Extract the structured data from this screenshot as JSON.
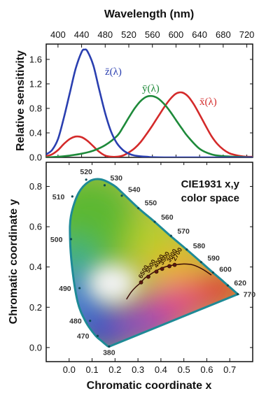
{
  "chart_data": [
    {
      "type": "line",
      "title": "Wavelength (nm)",
      "xlabel": "Wavelength (nm)",
      "ylabel": "Relative sensitivity",
      "xlim": [
        380,
        730
      ],
      "ylim": [
        0,
        1.85
      ],
      "xticks": [
        "400",
        "440",
        "480",
        "520",
        "560",
        "600",
        "640",
        "680",
        "720"
      ],
      "yticks": [
        "0.0",
        "0.4",
        "0.8",
        "1.2",
        "1.6"
      ],
      "series": [
        {
          "name": "x̄(λ)",
          "color": "#d42a2a",
          "x": [
            380,
            390,
            400,
            410,
            420,
            430,
            440,
            450,
            460,
            470,
            480,
            490,
            500,
            510,
            520,
            530,
            540,
            550,
            560,
            570,
            580,
            590,
            600,
            610,
            620,
            630,
            640,
            650,
            660,
            670,
            680,
            690,
            700,
            710,
            720,
            730
          ],
          "y": [
            0.02,
            0.05,
            0.12,
            0.22,
            0.3,
            0.34,
            0.33,
            0.27,
            0.18,
            0.09,
            0.03,
            0.01,
            0.01,
            0.03,
            0.08,
            0.15,
            0.25,
            0.38,
            0.52,
            0.67,
            0.82,
            0.95,
            1.04,
            1.06,
            1.0,
            0.87,
            0.7,
            0.52,
            0.35,
            0.22,
            0.13,
            0.07,
            0.04,
            0.02,
            0.01,
            0.01
          ]
        },
        {
          "name": "ȳ(λ)",
          "color": "#1e8a3a",
          "x": [
            380,
            400,
            420,
            440,
            460,
            480,
            500,
            510,
            520,
            530,
            540,
            550,
            560,
            570,
            580,
            590,
            600,
            610,
            620,
            640,
            660,
            680,
            700,
            730
          ],
          "y": [
            0.0,
            0.01,
            0.03,
            0.06,
            0.11,
            0.2,
            0.35,
            0.49,
            0.65,
            0.8,
            0.92,
            0.99,
            1.0,
            0.96,
            0.87,
            0.75,
            0.61,
            0.47,
            0.34,
            0.14,
            0.05,
            0.02,
            0.01,
            0.0
          ]
        },
        {
          "name": "z̄(λ)",
          "color": "#2a3fb0",
          "x": [
            380,
            390,
            400,
            410,
            420,
            430,
            440,
            445,
            450,
            460,
            470,
            480,
            490,
            500,
            510,
            520,
            530,
            550,
            580,
            730
          ],
          "y": [
            0.05,
            0.12,
            0.3,
            0.65,
            1.05,
            1.45,
            1.72,
            1.76,
            1.73,
            1.5,
            1.1,
            0.72,
            0.42,
            0.23,
            0.12,
            0.06,
            0.03,
            0.01,
            0.0,
            0.0
          ]
        }
      ]
    },
    {
      "type": "scatter",
      "xlabel": "Chromatic coordinate x",
      "ylabel": "Chromatic coordinate y",
      "xlim": [
        -0.1,
        0.8
      ],
      "ylim": [
        -0.07,
        0.92
      ],
      "xticks": [
        "0.0",
        "0.1",
        "0.2",
        "0.3",
        "0.4",
        "0.5",
        "0.6",
        "0.7"
      ],
      "yticks": [
        "0.0",
        "0.2",
        "0.4",
        "0.6",
        "0.8"
      ],
      "annotation_line1": "CIE1931 x,y",
      "annotation_line2": "color space",
      "spectral_locus": {
        "x": [
          0.175,
          0.174,
          0.172,
          0.166,
          0.144,
          0.112,
          0.069,
          0.037,
          0.014,
          0.004,
          0.008,
          0.041,
          0.089,
          0.139,
          0.195,
          0.23,
          0.302,
          0.373,
          0.441,
          0.512,
          0.575,
          0.627,
          0.666,
          0.692,
          0.735
        ],
        "y": [
          0.005,
          0.005,
          0.005,
          0.009,
          0.03,
          0.063,
          0.135,
          0.227,
          0.387,
          0.539,
          0.654,
          0.767,
          0.826,
          0.835,
          0.805,
          0.77,
          0.692,
          0.624,
          0.555,
          0.487,
          0.424,
          0.372,
          0.334,
          0.308,
          0.265
        ]
      },
      "wavelength_labels": [
        {
          "label": "380",
          "x": 0.1741,
          "y": 0.005
        },
        {
          "label": "470",
          "x": 0.1241,
          "y": 0.0578
        },
        {
          "label": "480",
          "x": 0.0913,
          "y": 0.1327
        },
        {
          "label": "490",
          "x": 0.0454,
          "y": 0.295
        },
        {
          "label": "500",
          "x": 0.0082,
          "y": 0.5384
        },
        {
          "label": "510",
          "x": 0.0139,
          "y": 0.7502
        },
        {
          "label": "520",
          "x": 0.0743,
          "y": 0.8338
        },
        {
          "label": "530",
          "x": 0.1547,
          "y": 0.8059
        },
        {
          "label": "540",
          "x": 0.2296,
          "y": 0.7543
        },
        {
          "label": "550",
          "x": 0.3016,
          "y": 0.6923
        },
        {
          "label": "560",
          "x": 0.3731,
          "y": 0.6245
        },
        {
          "label": "570",
          "x": 0.4441,
          "y": 0.5547
        },
        {
          "label": "580",
          "x": 0.5125,
          "y": 0.4866
        },
        {
          "label": "590",
          "x": 0.5752,
          "y": 0.4242
        },
        {
          "label": "600",
          "x": 0.627,
          "y": 0.3725
        },
        {
          "label": "620",
          "x": 0.6915,
          "y": 0.3083
        },
        {
          "label": "770",
          "x": 0.7347,
          "y": 0.2653
        }
      ],
      "planckian_locus": {
        "x": [
          0.25,
          0.27,
          0.29,
          0.31,
          0.33,
          0.35,
          0.37,
          0.4,
          0.43,
          0.46,
          0.5,
          0.54,
          0.58,
          0.62
        ],
        "y": [
          0.24,
          0.275,
          0.3,
          0.32,
          0.345,
          0.36,
          0.375,
          0.393,
          0.404,
          0.41,
          0.415,
          0.41,
          0.39,
          0.36
        ]
      },
      "cct_points": [
        {
          "label": "6500",
          "x": 0.3135,
          "y": 0.3237
        },
        {
          "label": "5000",
          "x": 0.3451,
          "y": 0.3516
        },
        {
          "label": "4000",
          "x": 0.3805,
          "y": 0.3768
        },
        {
          "label": "3500",
          "x": 0.4053,
          "y": 0.3907
        },
        {
          "label": "3000",
          "x": 0.4369,
          "y": 0.4041
        },
        {
          "label": "2700",
          "x": 0.4599,
          "y": 0.4106
        }
      ]
    }
  ]
}
